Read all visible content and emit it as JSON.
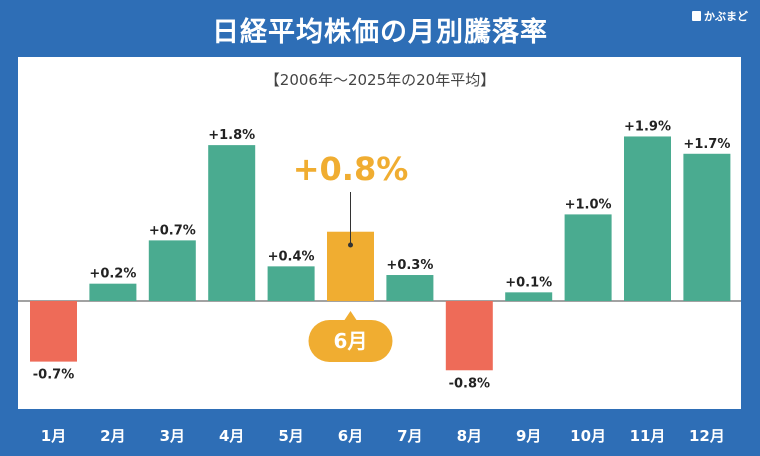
{
  "brand": "かぶまど",
  "chart_data": {
    "type": "bar",
    "title": "日経平均株価の月別騰落率",
    "subtitle": "【2006年〜2025年の20年平均】",
    "categories": [
      "1月",
      "2月",
      "3月",
      "4月",
      "5月",
      "6月",
      "7月",
      "8月",
      "9月",
      "10月",
      "11月",
      "12月"
    ],
    "values": [
      -0.7,
      0.2,
      0.7,
      1.8,
      0.4,
      0.8,
      0.3,
      -0.8,
      0.1,
      1.0,
      1.9,
      1.7
    ],
    "value_labels": [
      "-0.7%",
      "+0.2%",
      "+0.7%",
      "+1.8%",
      "+0.4%",
      "+0.8%",
      "+0.3%",
      "-0.8%",
      "+0.1%",
      "+1.0%",
      "+1.9%",
      "+1.7%"
    ],
    "highlight": {
      "category": "6月",
      "label": "+0.8%"
    },
    "colors": {
      "positive": "#4aab90",
      "negative": "#ee6b58",
      "highlight": "#f0ad31"
    },
    "grid": false
  }
}
